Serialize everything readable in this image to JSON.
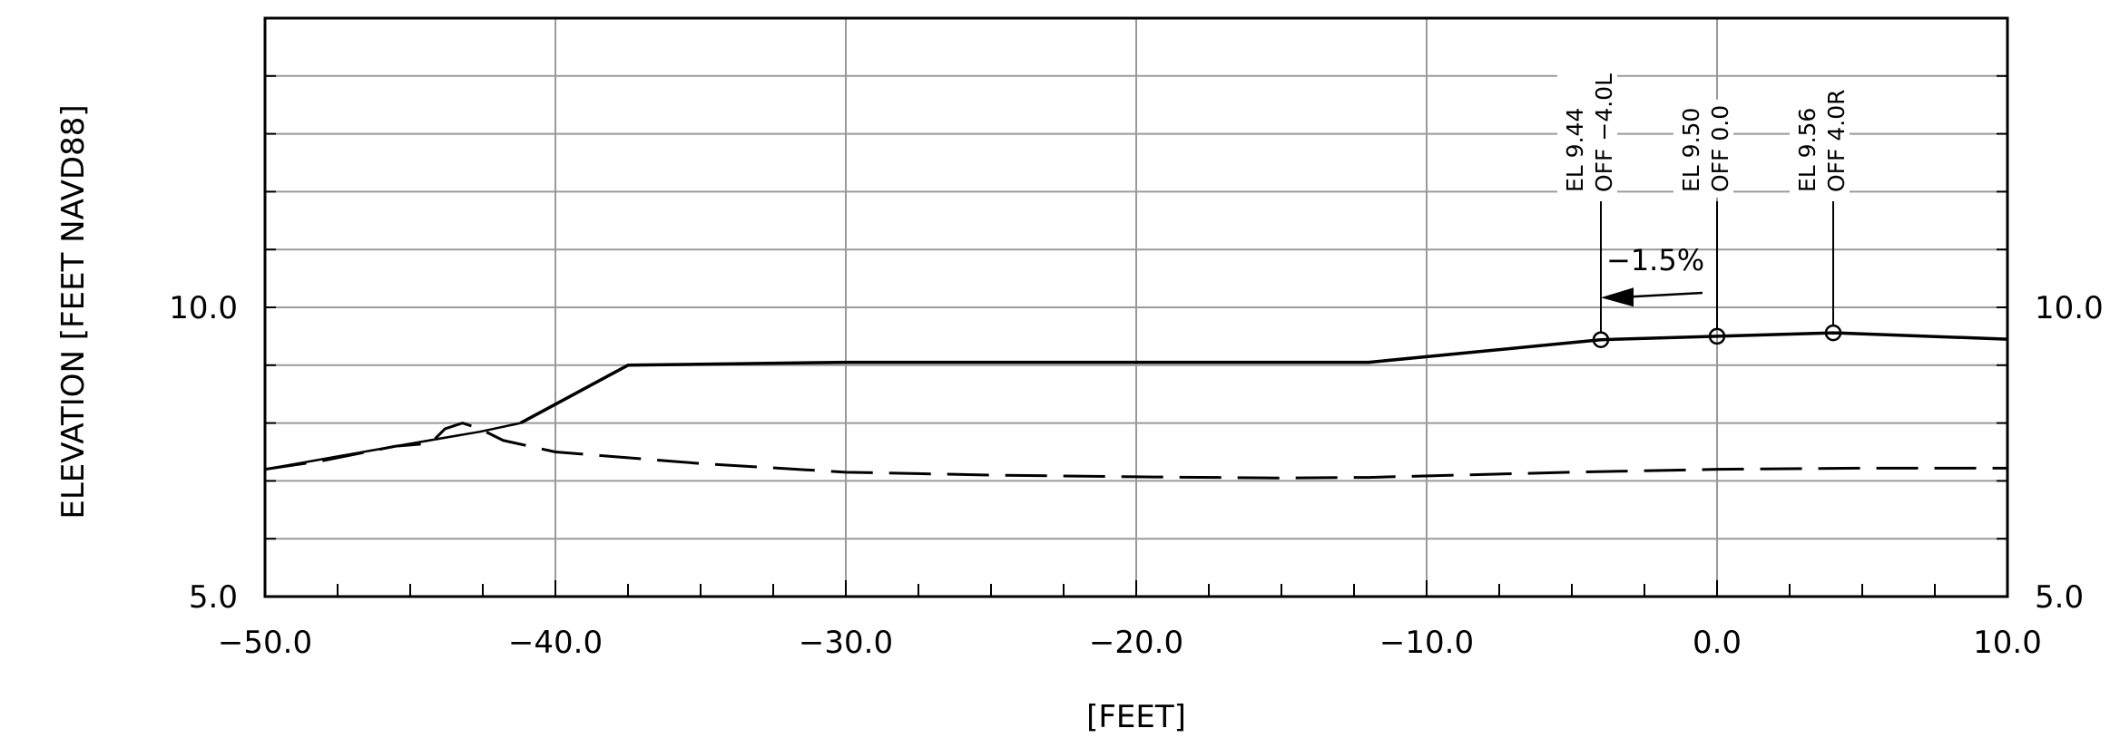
{
  "chart_data": {
    "type": "line",
    "xlabel": "[FEET]",
    "ylabel": "ELEVATION [FEET NAVD88]",
    "xlim": [
      -50,
      10
    ],
    "ylim": [
      5,
      15
    ],
    "x_ticks": [
      "-50.0",
      "-40.0",
      "-30.0",
      "-20.0",
      "-10.0",
      "0.0",
      "10.0"
    ],
    "y_ticks_left": [
      "5.0",
      "10.0"
    ],
    "y_ticks_right": [
      "5.0",
      "10.0"
    ],
    "grid": true,
    "series": [
      {
        "style": "solid",
        "x": [
          -41.2,
          -37.5,
          -30,
          -12,
          -4,
          0,
          4,
          10
        ],
        "y": [
          8.0,
          9.0,
          9.05,
          9.05,
          9.44,
          9.5,
          9.56,
          9.45
        ]
      },
      {
        "style": "dashed",
        "x": [
          -50,
          -48,
          -45.5,
          -44.3,
          -43.8,
          -43.2,
          -42.6,
          -41.8,
          -40,
          -35,
          -30,
          -25,
          -20,
          -15,
          -12,
          -5,
          0,
          5,
          10
        ],
        "y": [
          7.2,
          7.35,
          7.6,
          7.65,
          7.9,
          8.0,
          7.9,
          7.7,
          7.5,
          7.3,
          7.15,
          7.1,
          7.07,
          7.05,
          7.06,
          7.15,
          7.2,
          7.22,
          7.22
        ]
      },
      {
        "style": "solid-thin",
        "x": [
          -50,
          -45.5,
          -42.6,
          -41.2
        ],
        "y": [
          7.2,
          7.6,
          7.85,
          8.0
        ]
      }
    ],
    "callouts": [
      {
        "x": -4.0,
        "y": 9.44,
        "line1": "EL 9.44",
        "line2": "OFF -4.0L"
      },
      {
        "x": 0.0,
        "y": 9.5,
        "line1": "EL 9.50",
        "line2": "OFF 0.0"
      },
      {
        "x": 4.0,
        "y": 9.56,
        "line1": "EL 9.56",
        "line2": "OFF 4.0R"
      }
    ],
    "slope_annotation": {
      "text": "-1.5%",
      "from": [
        -0.5,
        10.25
      ],
      "to": [
        -4.0,
        10.2
      ]
    }
  }
}
